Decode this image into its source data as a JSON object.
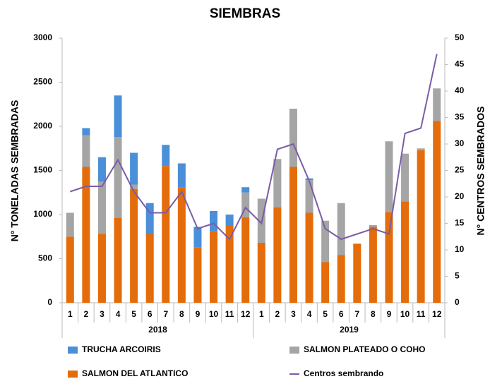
{
  "chart_data": {
    "type": "bar",
    "stacked": true,
    "title": "SIEMBRAS",
    "y_label": "N° TONELADAS SEMBRADAS",
    "y2_label": "N° CENTROS SEMBRADOS",
    "categories": [
      "1",
      "2",
      "3",
      "4",
      "5",
      "6",
      "7",
      "8",
      "9",
      "10",
      "11",
      "12",
      "1",
      "2",
      "3",
      "4",
      "5",
      "6",
      "7",
      "8",
      "9",
      "10",
      "11",
      "12"
    ],
    "x_groups": [
      "2018",
      "2019"
    ],
    "ylim": [
      0,
      3000
    ],
    "yticks": [
      0,
      500,
      1000,
      1500,
      2000,
      2500,
      3000
    ],
    "y2lim": [
      0,
      50
    ],
    "y2ticks": [
      0,
      5,
      10,
      15,
      20,
      25,
      30,
      35,
      40,
      45,
      50
    ],
    "grid": false,
    "series": [
      {
        "name": "SALMON DEL ATLANTICO",
        "type": "bar",
        "color": "#e46c0a",
        "values": [
          750,
          1540,
          780,
          960,
          1290,
          780,
          1550,
          1310,
          630,
          810,
          880,
          970,
          680,
          1080,
          1540,
          1020,
          460,
          540,
          670,
          860,
          1030,
          1150,
          1730,
          2060
        ]
      },
      {
        "name": "SALMON PLATEADO O COHO",
        "type": "bar",
        "color": "#a5a5a5",
        "values": [
          270,
          360,
          590,
          920,
          50,
          0,
          0,
          0,
          0,
          0,
          0,
          280,
          500,
          550,
          660,
          370,
          470,
          590,
          0,
          20,
          800,
          540,
          20,
          370
        ]
      },
      {
        "name": "TRUCHA ARCOIRIS",
        "type": "bar",
        "color": "#4a8fd8",
        "values": [
          0,
          80,
          280,
          470,
          360,
          350,
          240,
          270,
          230,
          230,
          120,
          60,
          0,
          0,
          0,
          20,
          0,
          0,
          0,
          0,
          0,
          0,
          0,
          0
        ]
      },
      {
        "name": "Centros sembrando",
        "type": "line",
        "axis": "y2",
        "color": "#7a5ca8",
        "values": [
          21,
          22,
          22,
          27,
          21,
          17,
          17,
          21,
          14,
          15,
          12,
          18,
          15,
          29,
          30,
          23,
          14,
          12,
          13,
          14,
          13,
          32,
          33,
          47
        ]
      }
    ]
  }
}
